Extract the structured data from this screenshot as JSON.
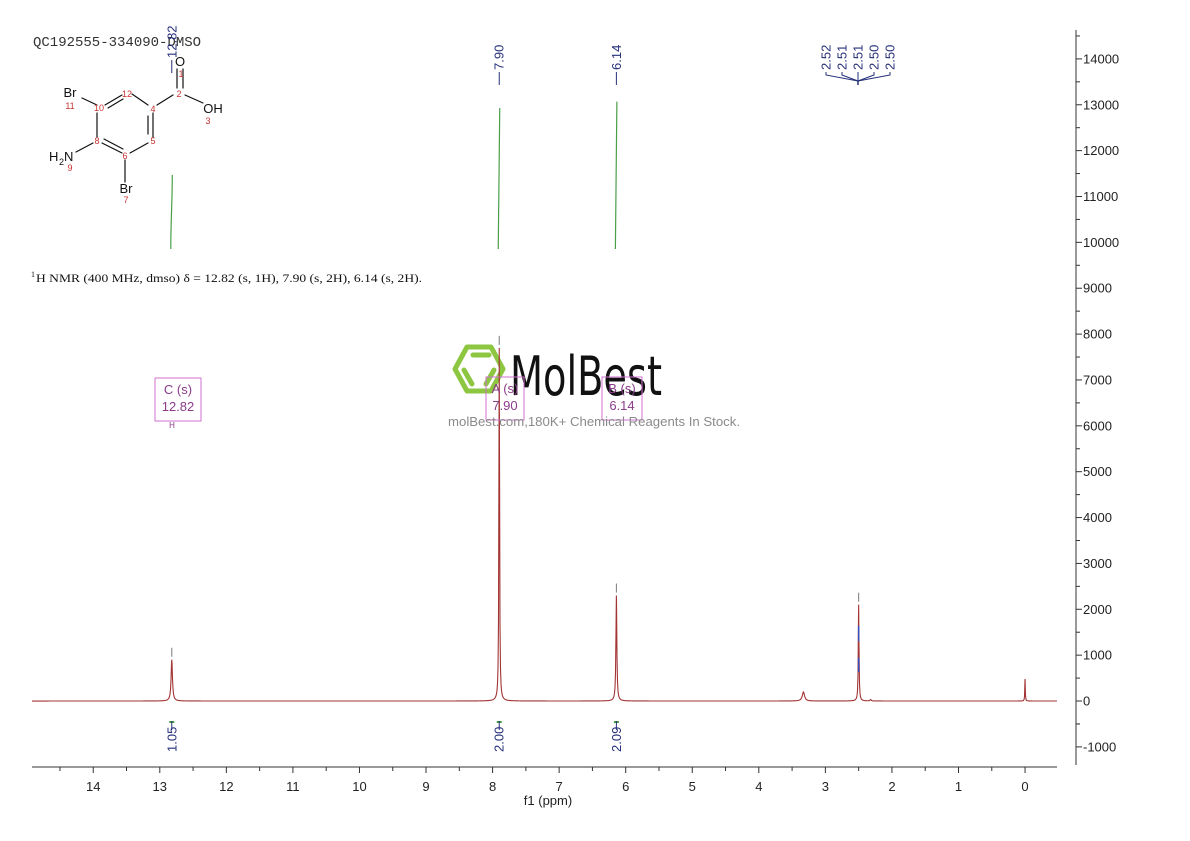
{
  "document": {
    "title": "QC192555-334090-DMSO"
  },
  "structure": {
    "labels": {
      "O": "O",
      "OH": "OH",
      "Br_top": "Br",
      "Br_bottom": "Br",
      "NH2_H": "H",
      "NH2_sub": "2",
      "NH2_N": "N"
    },
    "numbers": {
      "n1": "1",
      "n2": "2",
      "n3": "3",
      "n4": "4",
      "n5": "5",
      "n6": "6",
      "n7": "7",
      "n8": "8",
      "n9": "9",
      "n10": "10",
      "n11": "11",
      "n12": "12"
    }
  },
  "annotation": {
    "sup": "1",
    "text": "H NMR (400 MHz, dmso) δ = 12.82 (s, 1H), 7.90 (s, 2H), 6.14 (s, 2H)."
  },
  "watermark": {
    "brand": "MolBest",
    "tagline": "molBest.com,180K+ Chemical Reagents In Stock."
  },
  "chart_data": {
    "type": "line",
    "title": "QC192555-334090-DMSO",
    "xlabel": "f1 (ppm)",
    "ylabel": "",
    "xlim": [
      14.92,
      -0.48
    ],
    "ylim": [
      -1395,
      14630
    ],
    "x_ticks": [
      14,
      13,
      12,
      11,
      10,
      9,
      8,
      7,
      6,
      5,
      4,
      3,
      2,
      1,
      0
    ],
    "y_ticks": [
      -1000,
      0,
      1000,
      2000,
      3000,
      4000,
      5000,
      6000,
      7000,
      8000,
      9000,
      10000,
      11000,
      12000,
      13000,
      14000
    ],
    "grid": false,
    "legend": "none",
    "colors": {
      "spectrum": "#a23434",
      "integral": "#4a9e48",
      "peak_label": "#26307a",
      "peak_marker": "#7a7a7a",
      "multiplet": "#d070d0",
      "overlay": "#3550c0"
    },
    "peaks": [
      {
        "ppm": 12.82,
        "intensity": 900,
        "width": 0.012,
        "marked": true
      },
      {
        "ppm": 7.9,
        "intensity": 7700,
        "width": 0.006,
        "marked": true
      },
      {
        "ppm": 6.14,
        "intensity": 2300,
        "width": 0.008,
        "marked": true
      },
      {
        "ppm": 3.33,
        "intensity": 200,
        "width": 0.02,
        "marked": false
      },
      {
        "ppm": 2.5,
        "intensity": 2100,
        "width": 0.006,
        "marked": true,
        "overlay": true
      },
      {
        "ppm": 2.32,
        "intensity": 30,
        "width": 0.01,
        "marked": false
      },
      {
        "ppm": 0.0,
        "intensity": 480,
        "width": 0.004,
        "marked": false
      }
    ],
    "peak_labels": [
      {
        "ppm": 12.82,
        "values": [
          "12.82"
        ],
        "label_y": 58
      },
      {
        "ppm": 7.9,
        "values": [
          "7.90"
        ],
        "label_y": 70
      },
      {
        "ppm": 6.14,
        "values": [
          "6.14"
        ],
        "label_y": 70
      },
      {
        "ppm": 2.51,
        "values": [
          "2.52",
          "2.51",
          "2.51",
          "2.50",
          "2.50"
        ],
        "label_y": 70
      }
    ],
    "integrals": [
      {
        "ppm": 12.82,
        "value": "1.05"
      },
      {
        "ppm": 7.9,
        "value": "2.00"
      },
      {
        "ppm": 6.14,
        "value": "2.09"
      }
    ],
    "multiplets": [
      {
        "name": "C",
        "label": "C (s)",
        "shift": "12.82",
        "nucleus": "H"
      },
      {
        "name": "A",
        "label": "A (s)",
        "shift": "7.90"
      },
      {
        "name": "B",
        "label": "B (s)",
        "shift": "6.14"
      }
    ],
    "annotations": [
      "1H NMR (400 MHz, dmso) δ = 12.82 (s, 1H), 7.90 (s, 2H), 6.14 (s, 2H)."
    ]
  }
}
